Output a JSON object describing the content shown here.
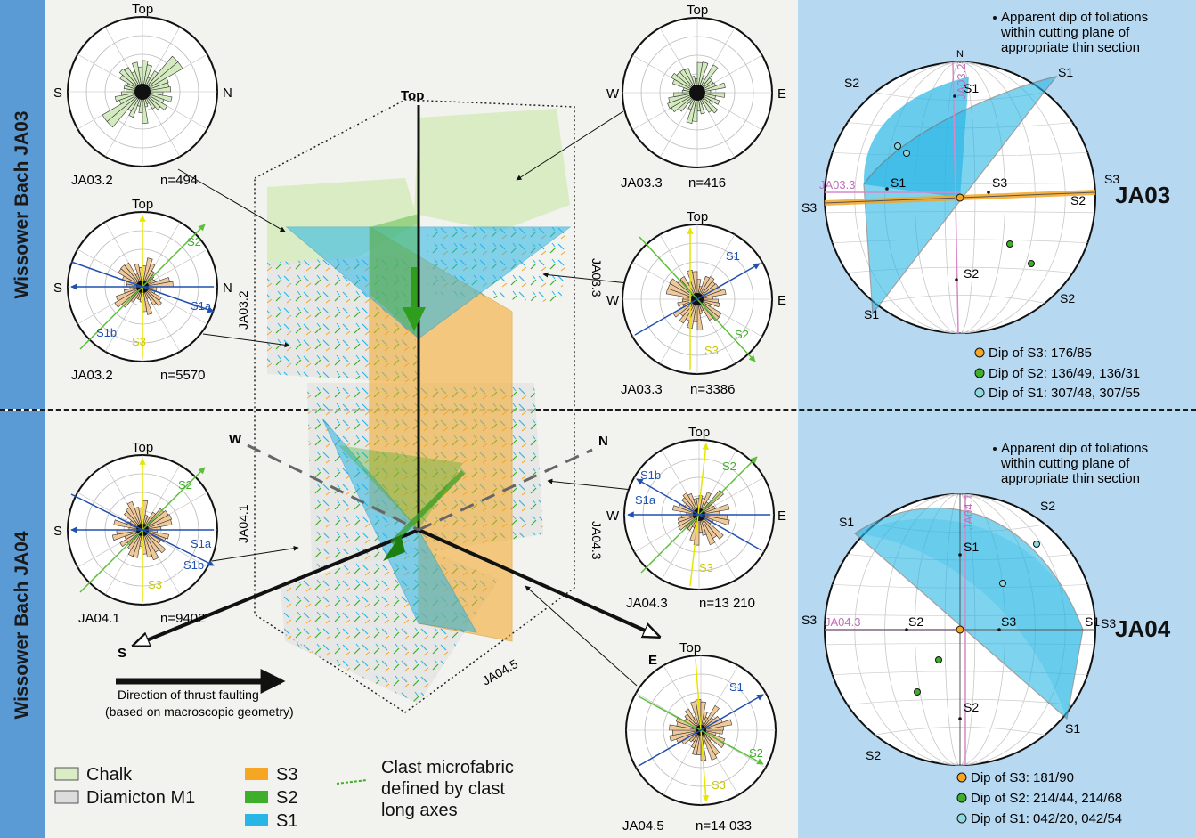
{
  "sections": {
    "top_label": "Wissower Bach JA03",
    "bottom_label": "Wissower Bach JA04"
  },
  "block": {
    "top": "Top",
    "w": "W",
    "n": "N",
    "s": "S",
    "e": "E",
    "sec_ja032": "JA03.2",
    "sec_ja033": "JA03.3",
    "sec_ja041": "JA04.1",
    "sec_ja043": "JA04.3",
    "sec_ja045": "JA04.5",
    "thrust_line1": "Direction of thrust faulting",
    "thrust_line2": "(based on macroscopic geometry)"
  },
  "roses": {
    "r1": {
      "top": "Top",
      "left": "S",
      "right": "N",
      "name": "JA03.2",
      "n": "n=494"
    },
    "r2": {
      "top": "Top",
      "left": "S",
      "right": "N",
      "name": "JA03.2",
      "n": "n=5570",
      "s1a": "S1a",
      "s1b": "S1b",
      "s2": "S2",
      "s3": "S3"
    },
    "r3": {
      "top": "Top",
      "left": "W",
      "right": "E",
      "name": "JA03.3",
      "n": "n=416"
    },
    "r4": {
      "top": "Top",
      "left": "W",
      "right": "E",
      "name": "JA03.3",
      "n": "n=3386",
      "s1": "S1",
      "s2": "S2",
      "s3": "S3"
    },
    "r5": {
      "top": "Top",
      "left": "S",
      "right": "N",
      "name": "JA04.1",
      "n": "n=9402",
      "s1a": "S1a",
      "s1b": "S1b",
      "s2": "S2",
      "s3": "S3"
    },
    "r6": {
      "top": "Top",
      "left": "W",
      "right": "E",
      "name": "JA04.3",
      "n": "n=13 210",
      "s1a": "S1a",
      "s1b": "S1b",
      "s2": "S2",
      "s3": "S3"
    },
    "r7": {
      "top": "Top",
      "name": "JA04.5",
      "n": "n=14 033",
      "s1": "S1",
      "s2": "S2",
      "s3": "S3"
    }
  },
  "legend": {
    "chalk": "Chalk",
    "diamicton": "Diamicton M1",
    "s3": "S3",
    "s2": "S2",
    "s1": "S1",
    "clast1": "Clast microfabric",
    "clast2": "defined by clast",
    "clast3": "long axes"
  },
  "stereonets": {
    "ja03": {
      "note1": "Apparent dip of foliations",
      "note2": "within cutting plane of",
      "note3": "appropriate thin section",
      "label": "JA03",
      "north": "N",
      "sec_a": "JA03.3",
      "sec_b": "JA03.2",
      "s1": "S1",
      "s2": "S2",
      "s3": "S3",
      "dip_s3": "Dip of S3: 176/85",
      "dip_s2": "Dip of S2: 136/49, 136/31",
      "dip_s1": "Dip of S1: 307/48, 307/55"
    },
    "ja04": {
      "note1": "Apparent dip of foliations",
      "note2": "within cutting plane of",
      "note3": "appropriate thin section",
      "label": "JA04",
      "sec_a": "JA04.3",
      "sec_b": "JA04.1",
      "s1": "S1",
      "s2": "S2",
      "s3": "S3",
      "dip_s3": "Dip of S3: 181/90",
      "dip_s2": "Dip of S2: 214/44, 214/68",
      "dip_s1": "Dip of S1: 042/20, 042/54"
    }
  },
  "colors": {
    "chalk": "#d9ecc4",
    "diamicton": "#dcdcdc",
    "s3": "#f5a623",
    "s2": "#3fae2a",
    "s1": "#29b6e6",
    "band": "#5b9bd5",
    "rose_fill": "#f0c99a",
    "chalk_rose": "#d4ebc0"
  }
}
